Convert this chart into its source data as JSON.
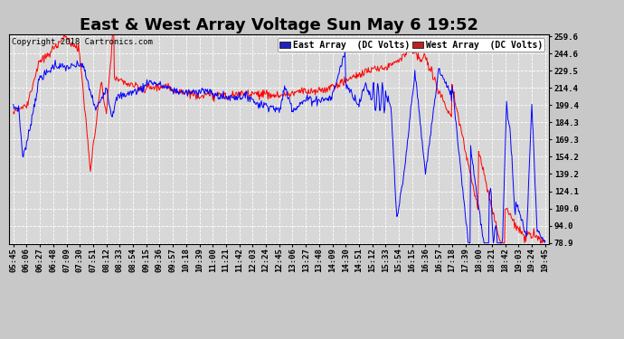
{
  "title": "East & West Array Voltage Sun May 6 19:52",
  "copyright": "Copyright 2018 Cartronics.com",
  "legend_east": "East Array  (DC Volts)",
  "legend_west": "West Array  (DC Volts)",
  "east_color": "#0000ff",
  "west_color": "#ff0000",
  "legend_east_bg": "#2222bb",
  "legend_west_bg": "#bb2222",
  "fig_facecolor": "#c8c8c8",
  "plot_facecolor": "#d8d8d8",
  "grid_color": "#ffffff",
  "ylim": [
    78.9,
    259.6
  ],
  "yticks": [
    78.9,
    94.0,
    109.0,
    124.1,
    139.2,
    154.2,
    169.3,
    184.3,
    199.4,
    214.4,
    229.5,
    244.6,
    259.6
  ],
  "xtick_labels": [
    "05:45",
    "06:06",
    "06:27",
    "06:48",
    "07:09",
    "07:30",
    "07:51",
    "08:12",
    "08:33",
    "08:54",
    "09:15",
    "09:36",
    "09:57",
    "10:18",
    "10:39",
    "11:00",
    "11:21",
    "11:42",
    "12:03",
    "12:24",
    "12:45",
    "13:06",
    "13:27",
    "13:48",
    "14:09",
    "14:30",
    "14:51",
    "15:12",
    "15:33",
    "15:54",
    "16:15",
    "16:36",
    "16:57",
    "17:18",
    "17:39",
    "18:00",
    "18:21",
    "18:42",
    "19:03",
    "19:24",
    "19:45"
  ],
  "title_fontsize": 13,
  "tick_fontsize": 6.5,
  "copyright_fontsize": 6.5,
  "legend_fontsize": 7
}
